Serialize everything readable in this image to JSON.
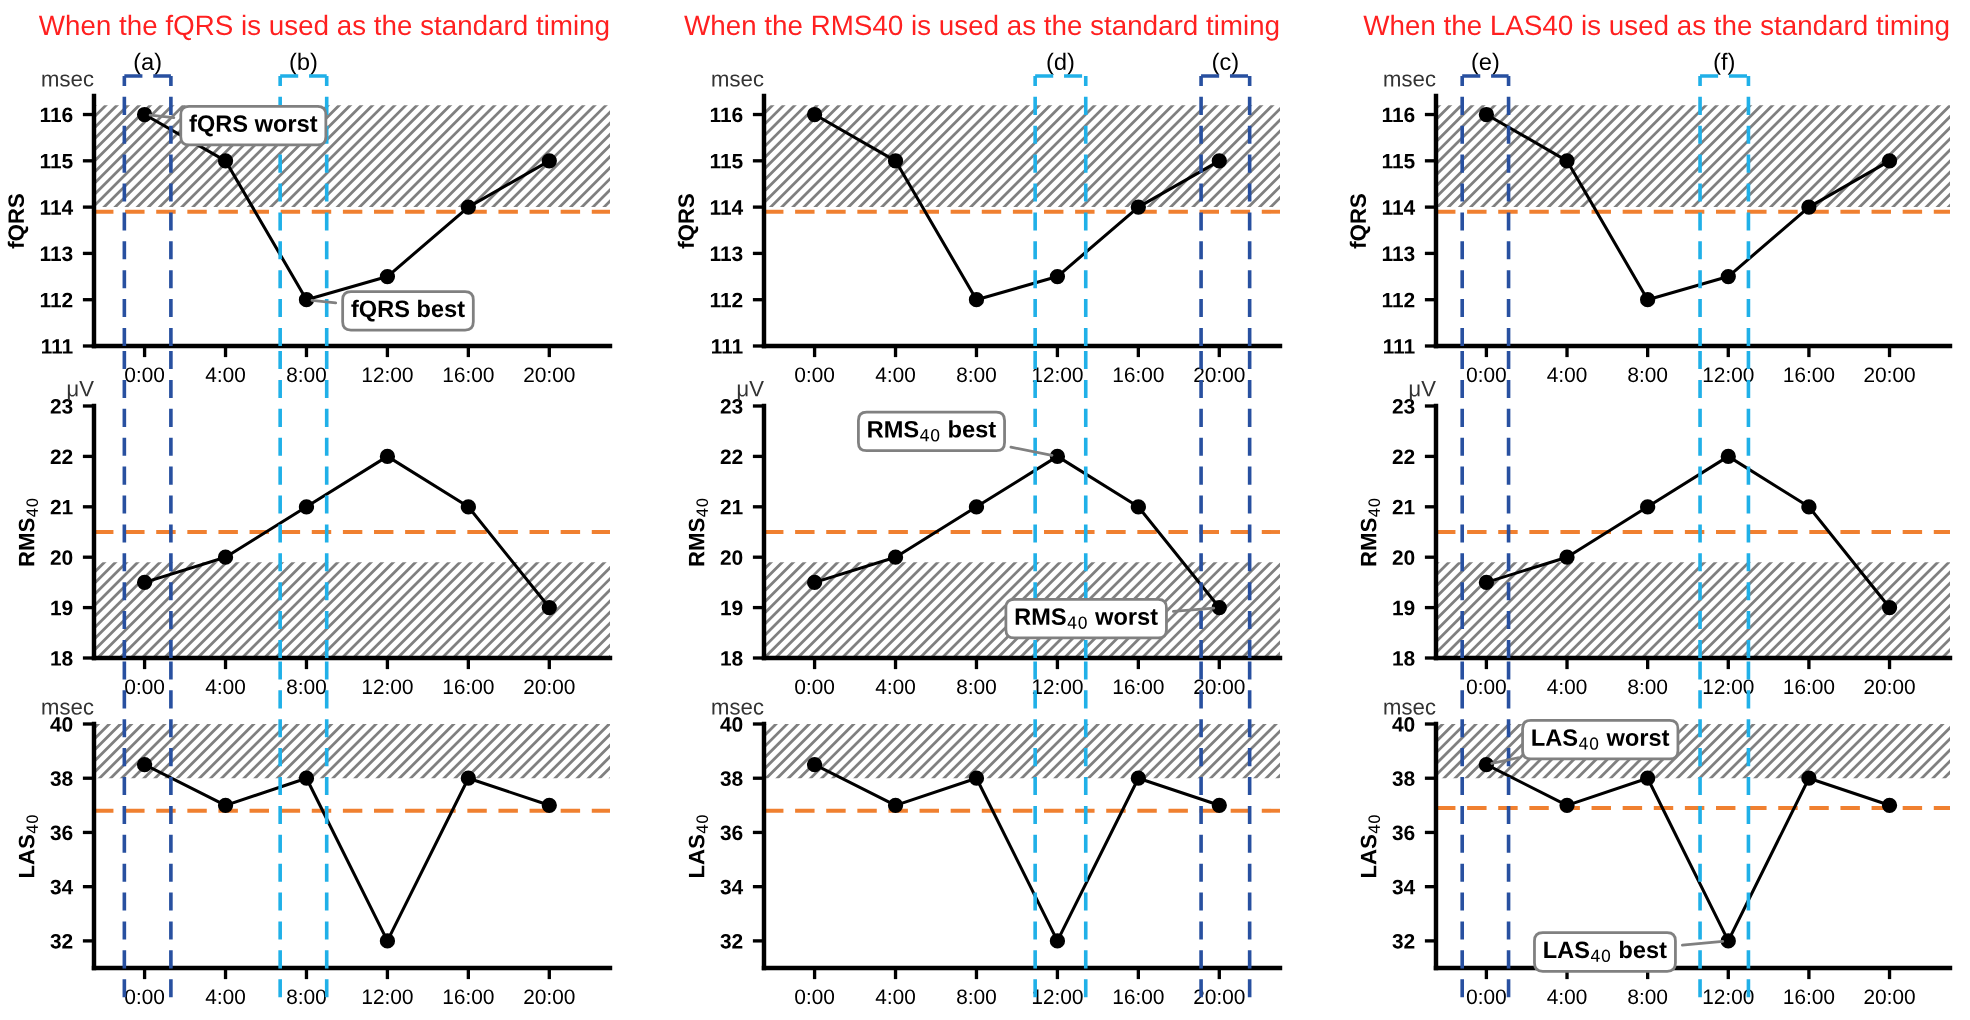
{
  "chart_data": [
    {
      "type": "line",
      "title": "When the fQRS is used as the standard timing",
      "ylabel": "fQRS",
      "x": [
        0,
        4,
        8,
        12,
        16,
        20
      ],
      "series": [
        {
          "color": "#000000",
          "values": [
            116,
            115,
            112,
            112.5,
            114,
            115
          ]
        }
      ],
      "xlim": [
        -2.5,
        23
      ],
      "xticks": [
        {
          "value": 0,
          "label": "0:00"
        },
        {
          "value": 4,
          "label": "4:00"
        },
        {
          "value": 8,
          "label": "8:00"
        },
        {
          "value": 12,
          "label": "12:00"
        },
        {
          "value": 16,
          "label": "16:00"
        },
        {
          "value": 20,
          "label": "20:00"
        }
      ],
      "ylim": [
        111,
        116.4
      ],
      "yticks": [
        111,
        112,
        113,
        114,
        115,
        116
      ],
      "marker": "circle",
      "grid": false,
      "ref_lines": [
        {
          "axis": "y",
          "value": 113.9,
          "color": "#f08030",
          "line_style": "dashed"
        },
        {
          "axis": "x",
          "value": -1,
          "label": "(a)",
          "color": "#2850a0",
          "line_style": "dashed"
        },
        {
          "axis": "x",
          "value": 1.3,
          "color": "#2850a0",
          "line_style": "dashed"
        },
        {
          "axis": "x",
          "value": 6.7,
          "label": "(b)",
          "color": "#20b0e8",
          "line_style": "dashed"
        },
        {
          "axis": "x",
          "value": 9.0,
          "color": "#20b0e8",
          "line_style": "dashed"
        }
      ],
      "bands": [
        {
          "axis": "y",
          "from": 114,
          "to": 116.2,
          "color": "#808080"
        }
      ],
      "annotations": [
        "msec",
        {
          "text": "fQRS worst",
          "x": 0,
          "y": 116
        },
        {
          "text": "fQRS best",
          "x": 8,
          "y": 112
        }
      ]
    },
    {
      "type": "line",
      "title": "When the RMS40 is used as the standard timing",
      "ylabel": "fQRS",
      "x": [
        0,
        4,
        8,
        12,
        16,
        20
      ],
      "series": [
        {
          "color": "#000000",
          "values": [
            116,
            115,
            112,
            112.5,
            114,
            115
          ]
        }
      ],
      "xlim": [
        -2.5,
        23
      ],
      "xticks": [
        {
          "value": 0,
          "label": "0:00"
        },
        {
          "value": 4,
          "label": "4:00"
        },
        {
          "value": 8,
          "label": "8:00"
        },
        {
          "value": 12,
          "label": "12:00"
        },
        {
          "value": 16,
          "label": "16:00"
        },
        {
          "value": 20,
          "label": "20:00"
        }
      ],
      "ylim": [
        111,
        116.4
      ],
      "yticks": [
        111,
        112,
        113,
        114,
        115,
        116
      ],
      "marker": "circle",
      "grid": false,
      "ref_lines": [
        {
          "axis": "y",
          "value": 113.9,
          "color": "#f08030",
          "line_style": "dashed"
        },
        {
          "axis": "x",
          "value": 10.9,
          "label": "(d)",
          "color": "#20b0e8",
          "line_style": "dashed"
        },
        {
          "axis": "x",
          "value": 13.4,
          "color": "#20b0e8",
          "line_style": "dashed"
        },
        {
          "axis": "x",
          "value": 19.1,
          "label": "(c)",
          "color": "#2850a0",
          "line_style": "dashed"
        },
        {
          "axis": "x",
          "value": 21.5,
          "color": "#2850a0",
          "line_style": "dashed"
        }
      ],
      "bands": [
        {
          "axis": "y",
          "from": 114,
          "to": 116.2,
          "color": "#808080"
        }
      ],
      "annotations": [
        "msec"
      ]
    },
    {
      "type": "line",
      "title": "When the LAS40 is used as the standard timing",
      "ylabel": "fQRS",
      "x": [
        0,
        4,
        8,
        12,
        16,
        20
      ],
      "series": [
        {
          "color": "#000000",
          "values": [
            116,
            115,
            112,
            112.5,
            114,
            115
          ]
        }
      ],
      "xlim": [
        -2.5,
        23
      ],
      "xticks": [
        {
          "value": 0,
          "label": "0:00"
        },
        {
          "value": 4,
          "label": "4:00"
        },
        {
          "value": 8,
          "label": "8:00"
        },
        {
          "value": 12,
          "label": "12:00"
        },
        {
          "value": 16,
          "label": "16:00"
        },
        {
          "value": 20,
          "label": "20:00"
        }
      ],
      "ylim": [
        111,
        116.4
      ],
      "yticks": [
        111,
        112,
        113,
        114,
        115,
        116
      ],
      "marker": "circle",
      "grid": false,
      "ref_lines": [
        {
          "axis": "y",
          "value": 113.9,
          "color": "#f08030",
          "line_style": "dashed"
        },
        {
          "axis": "x",
          "value": -1.2,
          "label": "(e)",
          "color": "#2850a0",
          "line_style": "dashed"
        },
        {
          "axis": "x",
          "value": 1.1,
          "color": "#2850a0",
          "line_style": "dashed"
        },
        {
          "axis": "x",
          "value": 10.6,
          "label": "(f)",
          "color": "#20b0e8",
          "line_style": "dashed"
        },
        {
          "axis": "x",
          "value": 13.0,
          "color": "#20b0e8",
          "line_style": "dashed"
        }
      ],
      "bands": [
        {
          "axis": "y",
          "from": 114,
          "to": 116.2,
          "color": "#808080"
        }
      ],
      "annotations": [
        "msec"
      ]
    },
    {
      "type": "line",
      "ylabel": "RMS$_{40}$",
      "x": [
        0,
        4,
        8,
        12,
        16,
        20
      ],
      "series": [
        {
          "color": "#000000",
          "values": [
            19.5,
            20,
            21,
            22,
            21,
            19
          ]
        }
      ],
      "xlim": [
        -2.5,
        23
      ],
      "xticks": [
        {
          "value": 0,
          "label": "0:00"
        },
        {
          "value": 4,
          "label": "4:00"
        },
        {
          "value": 8,
          "label": "8:00"
        },
        {
          "value": 12,
          "label": "12:00"
        },
        {
          "value": 16,
          "label": "16:00"
        },
        {
          "value": 20,
          "label": "20:00"
        }
      ],
      "ylim": [
        18,
        23
      ],
      "yticks": [
        18,
        19,
        20,
        21,
        22,
        23
      ],
      "marker": "circle",
      "grid": false,
      "ref_lines": [
        {
          "axis": "y",
          "value": 20.5,
          "color": "#f08030",
          "line_style": "dashed"
        },
        {
          "axis": "x",
          "value": -1,
          "color": "#2850a0",
          "line_style": "dashed"
        },
        {
          "axis": "x",
          "value": 1.3,
          "color": "#2850a0",
          "line_style": "dashed"
        },
        {
          "axis": "x",
          "value": 6.7,
          "color": "#20b0e8",
          "line_style": "dashed"
        },
        {
          "axis": "x",
          "value": 9.0,
          "color": "#20b0e8",
          "line_style": "dashed"
        }
      ],
      "bands": [
        {
          "axis": "y",
          "from": 18,
          "to": 19.9,
          "color": "#808080"
        }
      ],
      "annotations": [
        "μV"
      ]
    },
    {
      "type": "line",
      "ylabel": "RMS$_{40}$",
      "x": [
        0,
        4,
        8,
        12,
        16,
        20
      ],
      "series": [
        {
          "color": "#000000",
          "values": [
            19.5,
            20,
            21,
            22,
            21,
            19
          ]
        }
      ],
      "xlim": [
        -2.5,
        23
      ],
      "xticks": [
        {
          "value": 0,
          "label": "0:00"
        },
        {
          "value": 4,
          "label": "4:00"
        },
        {
          "value": 8,
          "label": "8:00"
        },
        {
          "value": 12,
          "label": "12:00"
        },
        {
          "value": 16,
          "label": "16:00"
        },
        {
          "value": 20,
          "label": "20:00"
        }
      ],
      "ylim": [
        18,
        23
      ],
      "yticks": [
        18,
        19,
        20,
        21,
        22,
        23
      ],
      "marker": "circle",
      "grid": false,
      "ref_lines": [
        {
          "axis": "y",
          "value": 20.5,
          "color": "#f08030",
          "line_style": "dashed"
        },
        {
          "axis": "x",
          "value": 10.9,
          "color": "#20b0e8",
          "line_style": "dashed"
        },
        {
          "axis": "x",
          "value": 13.4,
          "color": "#20b0e8",
          "line_style": "dashed"
        },
        {
          "axis": "x",
          "value": 19.1,
          "color": "#2850a0",
          "line_style": "dashed"
        },
        {
          "axis": "x",
          "value": 21.5,
          "color": "#2850a0",
          "line_style": "dashed"
        }
      ],
      "bands": [
        {
          "axis": "y",
          "from": 18,
          "to": 19.9,
          "color": "#808080"
        }
      ],
      "annotations": [
        "μV",
        {
          "text": "RMS$_{40}$ best",
          "x": 12,
          "y": 22
        },
        {
          "text": "RMS$_{40}$ worst",
          "x": 20,
          "y": 19
        }
      ]
    },
    {
      "type": "line",
      "ylabel": "RMS$_{40}$",
      "x": [
        0,
        4,
        8,
        12,
        16,
        20
      ],
      "series": [
        {
          "color": "#000000",
          "values": [
            19.5,
            20,
            21,
            22,
            21,
            19
          ]
        }
      ],
      "xlim": [
        -2.5,
        23
      ],
      "xticks": [
        {
          "value": 0,
          "label": "0:00"
        },
        {
          "value": 4,
          "label": "4:00"
        },
        {
          "value": 8,
          "label": "8:00"
        },
        {
          "value": 12,
          "label": "12:00"
        },
        {
          "value": 16,
          "label": "16:00"
        },
        {
          "value": 20,
          "label": "20:00"
        }
      ],
      "ylim": [
        18,
        23
      ],
      "yticks": [
        18,
        19,
        20,
        21,
        22,
        23
      ],
      "marker": "circle",
      "grid": false,
      "ref_lines": [
        {
          "axis": "y",
          "value": 20.5,
          "color": "#f08030",
          "line_style": "dashed"
        },
        {
          "axis": "x",
          "value": -1.2,
          "color": "#2850a0",
          "line_style": "dashed"
        },
        {
          "axis": "x",
          "value": 1.1,
          "color": "#2850a0",
          "line_style": "dashed"
        },
        {
          "axis": "x",
          "value": 10.6,
          "color": "#20b0e8",
          "line_style": "dashed"
        },
        {
          "axis": "x",
          "value": 13.0,
          "color": "#20b0e8",
          "line_style": "dashed"
        }
      ],
      "bands": [
        {
          "axis": "y",
          "from": 18,
          "to": 19.9,
          "color": "#808080"
        }
      ],
      "annotations": [
        "μV"
      ]
    },
    {
      "type": "line",
      "ylabel": "LAS$_{40}$",
      "x": [
        0,
        4,
        8,
        12,
        16,
        20
      ],
      "series": [
        {
          "color": "#000000",
          "values": [
            38.5,
            37,
            38,
            32,
            38,
            37
          ]
        }
      ],
      "xlim": [
        -2.5,
        23
      ],
      "xticks": [
        {
          "value": 0,
          "label": "0:00"
        },
        {
          "value": 4,
          "label": "4:00"
        },
        {
          "value": 8,
          "label": "8:00"
        },
        {
          "value": 12,
          "label": "12:00"
        },
        {
          "value": 16,
          "label": "16:00"
        },
        {
          "value": 20,
          "label": "20:00"
        }
      ],
      "ylim": [
        31,
        40
      ],
      "yticks": [
        32,
        34,
        36,
        38,
        40
      ],
      "marker": "circle",
      "grid": false,
      "ref_lines": [
        {
          "axis": "y",
          "value": 36.8,
          "color": "#f08030",
          "line_style": "dashed"
        },
        {
          "axis": "x",
          "value": -1,
          "color": "#2850a0",
          "line_style": "dashed"
        },
        {
          "axis": "x",
          "value": 1.3,
          "color": "#2850a0",
          "line_style": "dashed"
        },
        {
          "axis": "x",
          "value": 6.7,
          "color": "#20b0e8",
          "line_style": "dashed"
        },
        {
          "axis": "x",
          "value": 9.0,
          "color": "#20b0e8",
          "line_style": "dashed"
        }
      ],
      "bands": [
        {
          "axis": "y",
          "from": 38,
          "to": 40,
          "color": "#808080"
        }
      ],
      "annotations": [
        "msec"
      ]
    },
    {
      "type": "line",
      "ylabel": "LAS$_{40}$",
      "x": [
        0,
        4,
        8,
        12,
        16,
        20
      ],
      "series": [
        {
          "color": "#000000",
          "values": [
            38.5,
            37,
            38,
            32,
            38,
            37
          ]
        }
      ],
      "xlim": [
        -2.5,
        23
      ],
      "xticks": [
        {
          "value": 0,
          "label": "0:00"
        },
        {
          "value": 4,
          "label": "4:00"
        },
        {
          "value": 8,
          "label": "8:00"
        },
        {
          "value": 12,
          "label": "12:00"
        },
        {
          "value": 16,
          "label": "16:00"
        },
        {
          "value": 20,
          "label": "20:00"
        }
      ],
      "ylim": [
        31,
        40
      ],
      "yticks": [
        32,
        34,
        36,
        38,
        40
      ],
      "marker": "circle",
      "grid": false,
      "ref_lines": [
        {
          "axis": "y",
          "value": 36.8,
          "color": "#f08030",
          "line_style": "dashed"
        },
        {
          "axis": "x",
          "value": 10.9,
          "color": "#20b0e8",
          "line_style": "dashed"
        },
        {
          "axis": "x",
          "value": 13.4,
          "color": "#20b0e8",
          "line_style": "dashed"
        },
        {
          "axis": "x",
          "value": 19.1,
          "color": "#2850a0",
          "line_style": "dashed"
        },
        {
          "axis": "x",
          "value": 21.5,
          "color": "#2850a0",
          "line_style": "dashed"
        }
      ],
      "bands": [
        {
          "axis": "y",
          "from": 38,
          "to": 40,
          "color": "#808080"
        }
      ],
      "annotations": [
        "msec"
      ]
    },
    {
      "type": "line",
      "ylabel": "LAS$_{40}$",
      "x": [
        0,
        4,
        8,
        12,
        16,
        20
      ],
      "series": [
        {
          "color": "#000000",
          "values": [
            38.5,
            37,
            38,
            32,
            38,
            37
          ]
        }
      ],
      "xlim": [
        -2.5,
        23
      ],
      "xticks": [
        {
          "value": 0,
          "label": "0:00"
        },
        {
          "value": 4,
          "label": "4:00"
        },
        {
          "value": 8,
          "label": "8:00"
        },
        {
          "value": 12,
          "label": "12:00"
        },
        {
          "value": 16,
          "label": "16:00"
        },
        {
          "value": 20,
          "label": "20:00"
        }
      ],
      "ylim": [
        31,
        40
      ],
      "yticks": [
        32,
        34,
        36,
        38,
        40
      ],
      "marker": "circle",
      "grid": false,
      "ref_lines": [
        {
          "axis": "y",
          "value": 36.9,
          "color": "#f08030",
          "line_style": "dashed"
        },
        {
          "axis": "x",
          "value": -1.2,
          "color": "#2850a0",
          "line_style": "dashed"
        },
        {
          "axis": "x",
          "value": 1.1,
          "color": "#2850a0",
          "line_style": "dashed"
        },
        {
          "axis": "x",
          "value": 10.6,
          "color": "#20b0e8",
          "line_style": "dashed"
        },
        {
          "axis": "x",
          "value": 13.0,
          "color": "#20b0e8",
          "line_style": "dashed"
        }
      ],
      "bands": [
        {
          "axis": "y",
          "from": 38,
          "to": 40,
          "color": "#808080"
        }
      ],
      "annotations": [
        "msec",
        {
          "text": "LAS$_{40}$ worst",
          "x": 0,
          "y": 38.5
        },
        {
          "text": "LAS$_{40}$ best",
          "x": 12,
          "y": 32
        }
      ]
    }
  ]
}
